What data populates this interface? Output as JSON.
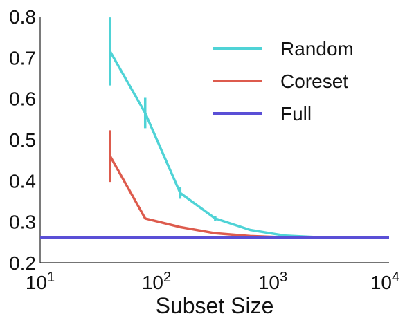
{
  "chart_data": {
    "type": "line",
    "title": "",
    "xlabel": "Subset Size",
    "ylabel": "",
    "xscale": "log",
    "xlim": [
      10,
      10000
    ],
    "ylim": [
      0.2,
      0.8
    ],
    "x_ticks": [
      {
        "value": 10,
        "base": "10",
        "exp": "1"
      },
      {
        "value": 100,
        "base": "10",
        "exp": "2"
      },
      {
        "value": 1000,
        "base": "10",
        "exp": "3"
      },
      {
        "value": 10000,
        "base": "10",
        "exp": "4"
      }
    ],
    "y_ticks": [
      {
        "value": 0.2,
        "label": "0.2"
      },
      {
        "value": 0.3,
        "label": "0.3"
      },
      {
        "value": 0.4,
        "label": "0.4"
      },
      {
        "value": 0.5,
        "label": "0.5"
      },
      {
        "value": 0.6,
        "label": "0.6"
      },
      {
        "value": 0.7,
        "label": "0.7"
      },
      {
        "value": 0.8,
        "label": "0.8"
      }
    ],
    "grid": false,
    "legend_position": "top-right",
    "series": [
      {
        "name": "Random",
        "color": "#4fd3d6",
        "points": [
          {
            "x": 40,
            "y": 0.715,
            "err": 0.083
          },
          {
            "x": 80,
            "y": 0.565,
            "err": 0.037
          },
          {
            "x": 160,
            "y": 0.37,
            "err": 0.014
          },
          {
            "x": 320,
            "y": 0.308,
            "err": 0.006
          },
          {
            "x": 640,
            "y": 0.28
          },
          {
            "x": 1280,
            "y": 0.266
          },
          {
            "x": 2560,
            "y": 0.262
          },
          {
            "x": 5120,
            "y": 0.261
          },
          {
            "x": 10000,
            "y": 0.261
          }
        ]
      },
      {
        "name": "Coreset",
        "color": "#dd5b4d",
        "points": [
          {
            "x": 40,
            "y": 0.46,
            "err": 0.063
          },
          {
            "x": 80,
            "y": 0.308
          },
          {
            "x": 160,
            "y": 0.287
          },
          {
            "x": 320,
            "y": 0.272
          },
          {
            "x": 640,
            "y": 0.265
          },
          {
            "x": 1280,
            "y": 0.262
          },
          {
            "x": 2560,
            "y": 0.261
          },
          {
            "x": 5120,
            "y": 0.261
          },
          {
            "x": 10000,
            "y": 0.261
          }
        ]
      },
      {
        "name": "Full",
        "color": "#5a4fd6",
        "points": [
          {
            "x": 10,
            "y": 0.261
          },
          {
            "x": 10000,
            "y": 0.261
          }
        ]
      }
    ]
  }
}
